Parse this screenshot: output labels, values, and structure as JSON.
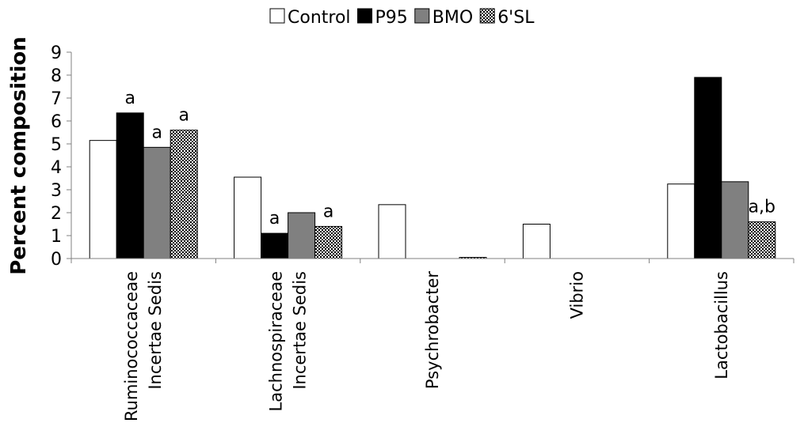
{
  "chart_data": {
    "type": "bar",
    "title": "",
    "xlabel": "",
    "ylabel": "Percent composition",
    "ylim": [
      0,
      9
    ],
    "yticks": [
      0,
      1,
      2,
      3,
      4,
      5,
      6,
      7,
      8,
      9
    ],
    "grid": false,
    "legend_position": "top",
    "categories": [
      [
        "Ruminococcaceae",
        "Incertae Sedis"
      ],
      [
        "Lachnospiraceae",
        "Incertae Sedis"
      ],
      [
        "Psychrobacter"
      ],
      [
        "Vibrio"
      ],
      [
        "Lactobacillus"
      ]
    ],
    "series": [
      {
        "name": "Control",
        "fill": "white",
        "values": [
          5.15,
          3.55,
          2.35,
          1.5,
          3.25
        ]
      },
      {
        "name": "P95",
        "fill": "black",
        "values": [
          6.35,
          1.1,
          0,
          0,
          7.9
        ]
      },
      {
        "name": "BMO",
        "fill": "gray",
        "values": [
          4.85,
          2.0,
          0,
          0,
          3.35
        ]
      },
      {
        "name": "6'SL",
        "fill": "checkered",
        "values": [
          5.6,
          1.4,
          0.05,
          0,
          1.6
        ]
      }
    ],
    "annotations": [
      {
        "category": 0,
        "series": 1,
        "text": "a"
      },
      {
        "category": 0,
        "series": 2,
        "text": "a"
      },
      {
        "category": 0,
        "series": 3,
        "text": "a"
      },
      {
        "category": 1,
        "series": 1,
        "text": "a"
      },
      {
        "category": 1,
        "series": 3,
        "text": "a"
      },
      {
        "category": 4,
        "series": 3,
        "text": "a,b"
      }
    ]
  }
}
